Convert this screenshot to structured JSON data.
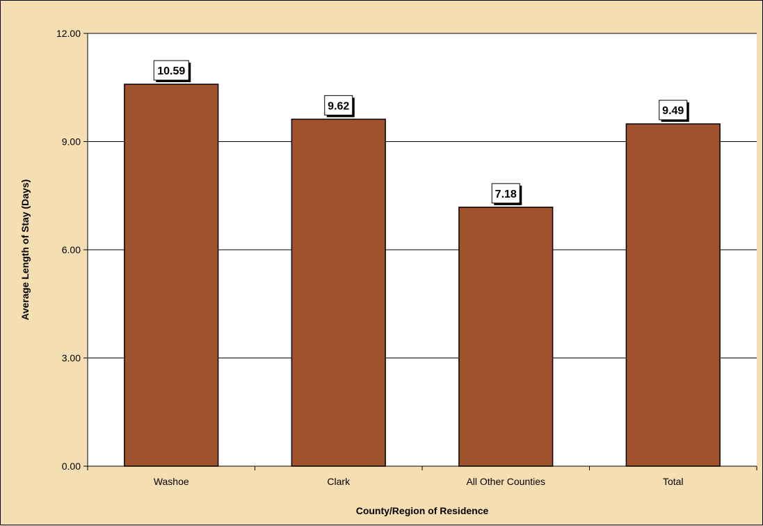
{
  "chart_data": {
    "type": "bar",
    "title": "",
    "xlabel": "County/Region of Residence",
    "ylabel": "Average Length of Stay (Days)",
    "categories": [
      "Washoe",
      "Clark",
      "All Other Counties",
      "Total"
    ],
    "values": [
      10.59,
      9.62,
      7.18,
      9.49
    ],
    "data_labels": [
      "10.59",
      "9.62",
      "7.18",
      "9.49"
    ],
    "ylim": [
      0,
      12
    ],
    "yticks": [
      "0.00",
      "3.00",
      "6.00",
      "9.00",
      "12.00"
    ],
    "grid": true,
    "legend": "none"
  },
  "colors": {
    "background": "#f6deb3",
    "plot_area": "#ffffff",
    "bar_fill": "#a0522d",
    "bar_stroke": "#000000",
    "gridline": "#000000"
  }
}
